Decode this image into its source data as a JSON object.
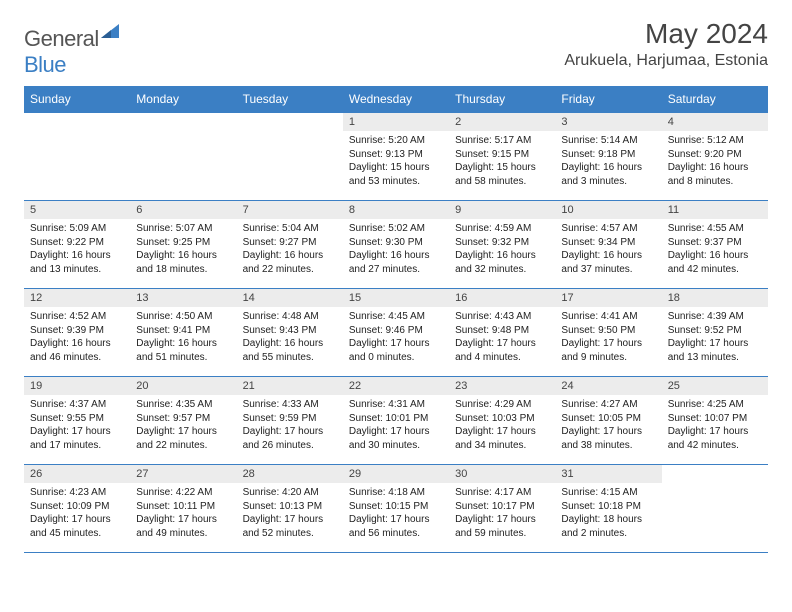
{
  "brand": {
    "part1": "General",
    "part2": "Blue"
  },
  "title": "May 2024",
  "location": "Arukuela, Harjumaa, Estonia",
  "colors": {
    "accent": "#3b7fc4",
    "header_text": "#ffffff",
    "daynum_bg": "#ececec",
    "text": "#222222",
    "title_text": "#444444",
    "page_bg": "#ffffff"
  },
  "daynames": [
    "Sunday",
    "Monday",
    "Tuesday",
    "Wednesday",
    "Thursday",
    "Friday",
    "Saturday"
  ],
  "weeks": [
    [
      {
        "n": "",
        "empty": true
      },
      {
        "n": "",
        "empty": true
      },
      {
        "n": "",
        "empty": true
      },
      {
        "n": "1",
        "sr": "Sunrise: 5:20 AM",
        "ss": "Sunset: 9:13 PM",
        "dl1": "Daylight: 15 hours",
        "dl2": "and 53 minutes."
      },
      {
        "n": "2",
        "sr": "Sunrise: 5:17 AM",
        "ss": "Sunset: 9:15 PM",
        "dl1": "Daylight: 15 hours",
        "dl2": "and 58 minutes."
      },
      {
        "n": "3",
        "sr": "Sunrise: 5:14 AM",
        "ss": "Sunset: 9:18 PM",
        "dl1": "Daylight: 16 hours",
        "dl2": "and 3 minutes."
      },
      {
        "n": "4",
        "sr": "Sunrise: 5:12 AM",
        "ss": "Sunset: 9:20 PM",
        "dl1": "Daylight: 16 hours",
        "dl2": "and 8 minutes."
      }
    ],
    [
      {
        "n": "5",
        "sr": "Sunrise: 5:09 AM",
        "ss": "Sunset: 9:22 PM",
        "dl1": "Daylight: 16 hours",
        "dl2": "and 13 minutes."
      },
      {
        "n": "6",
        "sr": "Sunrise: 5:07 AM",
        "ss": "Sunset: 9:25 PM",
        "dl1": "Daylight: 16 hours",
        "dl2": "and 18 minutes."
      },
      {
        "n": "7",
        "sr": "Sunrise: 5:04 AM",
        "ss": "Sunset: 9:27 PM",
        "dl1": "Daylight: 16 hours",
        "dl2": "and 22 minutes."
      },
      {
        "n": "8",
        "sr": "Sunrise: 5:02 AM",
        "ss": "Sunset: 9:30 PM",
        "dl1": "Daylight: 16 hours",
        "dl2": "and 27 minutes."
      },
      {
        "n": "9",
        "sr": "Sunrise: 4:59 AM",
        "ss": "Sunset: 9:32 PM",
        "dl1": "Daylight: 16 hours",
        "dl2": "and 32 minutes."
      },
      {
        "n": "10",
        "sr": "Sunrise: 4:57 AM",
        "ss": "Sunset: 9:34 PM",
        "dl1": "Daylight: 16 hours",
        "dl2": "and 37 minutes."
      },
      {
        "n": "11",
        "sr": "Sunrise: 4:55 AM",
        "ss": "Sunset: 9:37 PM",
        "dl1": "Daylight: 16 hours",
        "dl2": "and 42 minutes."
      }
    ],
    [
      {
        "n": "12",
        "sr": "Sunrise: 4:52 AM",
        "ss": "Sunset: 9:39 PM",
        "dl1": "Daylight: 16 hours",
        "dl2": "and 46 minutes."
      },
      {
        "n": "13",
        "sr": "Sunrise: 4:50 AM",
        "ss": "Sunset: 9:41 PM",
        "dl1": "Daylight: 16 hours",
        "dl2": "and 51 minutes."
      },
      {
        "n": "14",
        "sr": "Sunrise: 4:48 AM",
        "ss": "Sunset: 9:43 PM",
        "dl1": "Daylight: 16 hours",
        "dl2": "and 55 minutes."
      },
      {
        "n": "15",
        "sr": "Sunrise: 4:45 AM",
        "ss": "Sunset: 9:46 PM",
        "dl1": "Daylight: 17 hours",
        "dl2": "and 0 minutes."
      },
      {
        "n": "16",
        "sr": "Sunrise: 4:43 AM",
        "ss": "Sunset: 9:48 PM",
        "dl1": "Daylight: 17 hours",
        "dl2": "and 4 minutes."
      },
      {
        "n": "17",
        "sr": "Sunrise: 4:41 AM",
        "ss": "Sunset: 9:50 PM",
        "dl1": "Daylight: 17 hours",
        "dl2": "and 9 minutes."
      },
      {
        "n": "18",
        "sr": "Sunrise: 4:39 AM",
        "ss": "Sunset: 9:52 PM",
        "dl1": "Daylight: 17 hours",
        "dl2": "and 13 minutes."
      }
    ],
    [
      {
        "n": "19",
        "sr": "Sunrise: 4:37 AM",
        "ss": "Sunset: 9:55 PM",
        "dl1": "Daylight: 17 hours",
        "dl2": "and 17 minutes."
      },
      {
        "n": "20",
        "sr": "Sunrise: 4:35 AM",
        "ss": "Sunset: 9:57 PM",
        "dl1": "Daylight: 17 hours",
        "dl2": "and 22 minutes."
      },
      {
        "n": "21",
        "sr": "Sunrise: 4:33 AM",
        "ss": "Sunset: 9:59 PM",
        "dl1": "Daylight: 17 hours",
        "dl2": "and 26 minutes."
      },
      {
        "n": "22",
        "sr": "Sunrise: 4:31 AM",
        "ss": "Sunset: 10:01 PM",
        "dl1": "Daylight: 17 hours",
        "dl2": "and 30 minutes."
      },
      {
        "n": "23",
        "sr": "Sunrise: 4:29 AM",
        "ss": "Sunset: 10:03 PM",
        "dl1": "Daylight: 17 hours",
        "dl2": "and 34 minutes."
      },
      {
        "n": "24",
        "sr": "Sunrise: 4:27 AM",
        "ss": "Sunset: 10:05 PM",
        "dl1": "Daylight: 17 hours",
        "dl2": "and 38 minutes."
      },
      {
        "n": "25",
        "sr": "Sunrise: 4:25 AM",
        "ss": "Sunset: 10:07 PM",
        "dl1": "Daylight: 17 hours",
        "dl2": "and 42 minutes."
      }
    ],
    [
      {
        "n": "26",
        "sr": "Sunrise: 4:23 AM",
        "ss": "Sunset: 10:09 PM",
        "dl1": "Daylight: 17 hours",
        "dl2": "and 45 minutes."
      },
      {
        "n": "27",
        "sr": "Sunrise: 4:22 AM",
        "ss": "Sunset: 10:11 PM",
        "dl1": "Daylight: 17 hours",
        "dl2": "and 49 minutes."
      },
      {
        "n": "28",
        "sr": "Sunrise: 4:20 AM",
        "ss": "Sunset: 10:13 PM",
        "dl1": "Daylight: 17 hours",
        "dl2": "and 52 minutes."
      },
      {
        "n": "29",
        "sr": "Sunrise: 4:18 AM",
        "ss": "Sunset: 10:15 PM",
        "dl1": "Daylight: 17 hours",
        "dl2": "and 56 minutes."
      },
      {
        "n": "30",
        "sr": "Sunrise: 4:17 AM",
        "ss": "Sunset: 10:17 PM",
        "dl1": "Daylight: 17 hours",
        "dl2": "and 59 minutes."
      },
      {
        "n": "31",
        "sr": "Sunrise: 4:15 AM",
        "ss": "Sunset: 10:18 PM",
        "dl1": "Daylight: 18 hours",
        "dl2": "and 2 minutes."
      },
      {
        "n": "",
        "empty": true
      }
    ]
  ]
}
